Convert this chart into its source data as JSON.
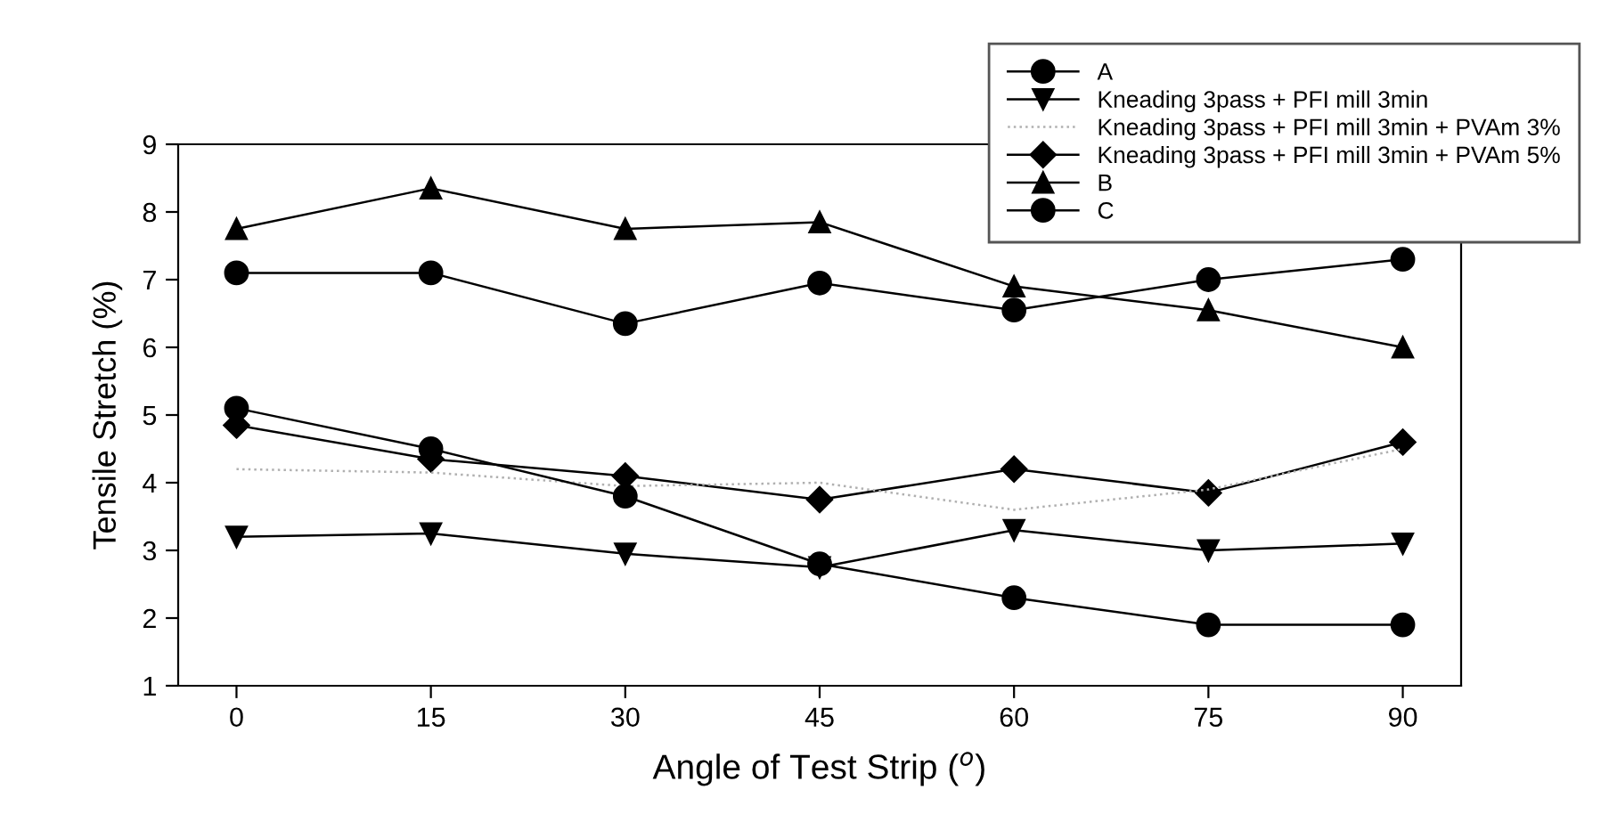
{
  "chart_data": {
    "type": "line",
    "xlabel": "Angle of Test Strip ($^{o}$)",
    "ylabel": "Tensile Stretch (%)",
    "x": [
      0,
      15,
      30,
      45,
      60,
      75,
      90
    ],
    "xlim": [
      -4.5,
      94.5
    ],
    "xticks": [
      0,
      15,
      30,
      45,
      60,
      75,
      90
    ],
    "ylim": [
      1,
      9
    ],
    "yticks": [
      1,
      2,
      3,
      4,
      5,
      6,
      7,
      8,
      9
    ],
    "grid": false,
    "legend": "top right",
    "line_style": "solid",
    "series": [
      {
        "name": "A",
        "color": "#000000",
        "marker": "circle",
        "values": [
          5.1,
          4.5,
          3.8,
          2.8,
          2.3,
          1.9,
          1.9
        ]
      },
      {
        "name": "Kneading 3pass + PFI mill 3min",
        "color": "#000000",
        "marker": "triangle_down",
        "values": [
          3.2,
          3.25,
          2.95,
          2.75,
          3.3,
          3.0,
          3.1
        ]
      },
      {
        "name": "Kneading 3pass + PFI mill 3min + PVAm 3%",
        "color": "#b0b0b0",
        "marker": "none",
        "line_style": "dotted",
        "values": [
          4.2,
          4.15,
          3.95,
          4.0,
          3.6,
          3.9,
          4.5
        ]
      },
      {
        "name": "Kneading 3pass + PFI mill 3min + PVAm 5%",
        "color": "#000000",
        "marker": "diamond",
        "values": [
          4.85,
          4.35,
          4.1,
          3.75,
          4.2,
          3.85,
          4.6
        ]
      },
      {
        "name": "B",
        "color": "#000000",
        "marker": "triangle",
        "values": [
          7.75,
          8.35,
          7.75,
          7.85,
          6.9,
          6.55,
          6.0
        ]
      },
      {
        "name": "C",
        "color": "#000000",
        "marker": "circle",
        "values": [
          7.1,
          7.1,
          6.35,
          6.95,
          6.55,
          7.0,
          7.3
        ]
      }
    ]
  }
}
